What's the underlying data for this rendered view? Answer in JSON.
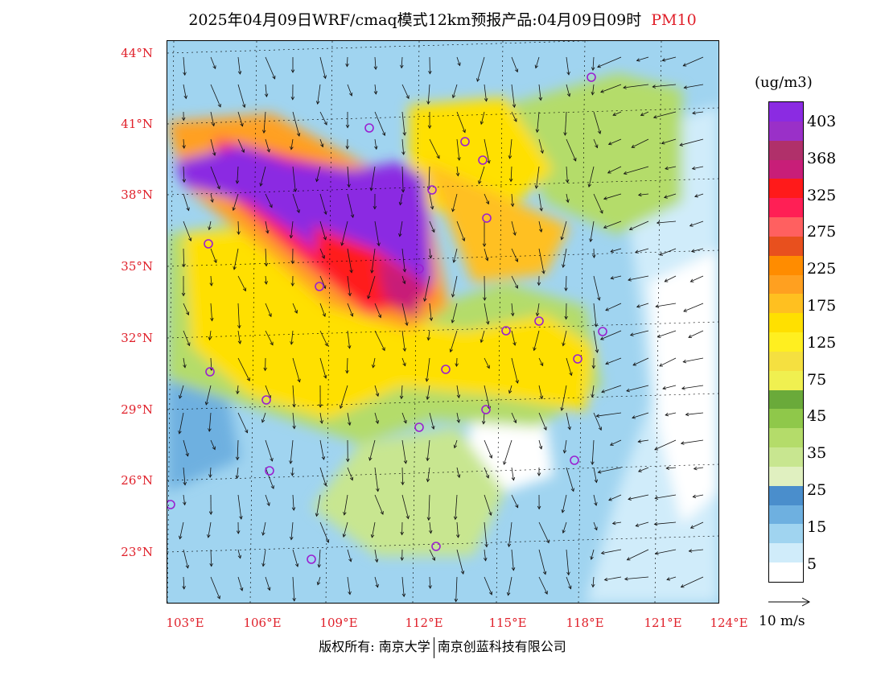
{
  "title": {
    "main": "2025年04月09日WRF/cmaq模式12km预报产品:04月09日09时",
    "variable": "PM10"
  },
  "lat_labels": [
    "44°N",
    "41°N",
    "38°N",
    "35°N",
    "32°N",
    "29°N",
    "26°N",
    "23°N"
  ],
  "lon_labels": [
    "103°E",
    "106°E",
    "109°E",
    "112°E",
    "115°E",
    "118°E",
    "121°E",
    "124°E"
  ],
  "legend": {
    "unit": "(ug/m3)",
    "labels": [
      "403",
      "368",
      "325",
      "275",
      "225",
      "175",
      "125",
      "75",
      "45",
      "35",
      "25",
      "15",
      "5"
    ],
    "colors": [
      "#8b2be2",
      "#9a30c8",
      "#b0306a",
      "#c81e78",
      "#ff1a1a",
      "#ff1f55",
      "#ff6060",
      "#e8501e",
      "#ff8c00",
      "#ffa020",
      "#ffc020",
      "#ffe000",
      "#ffef20",
      "#f5e040",
      "#f0f050",
      "#6aaa3a",
      "#8fc84a",
      "#b4dc6a",
      "#c8e690",
      "#e0f0c0",
      "#4a8ecc",
      "#6eb0e0",
      "#a0d4f0",
      "#d0ecfa",
      "#ffffff"
    ]
  },
  "wind_reference": {
    "label": "10 m/s"
  },
  "copyright": {
    "left": "版权所有: 南京大学",
    "right": "南京创蓝科技有限公司"
  }
}
